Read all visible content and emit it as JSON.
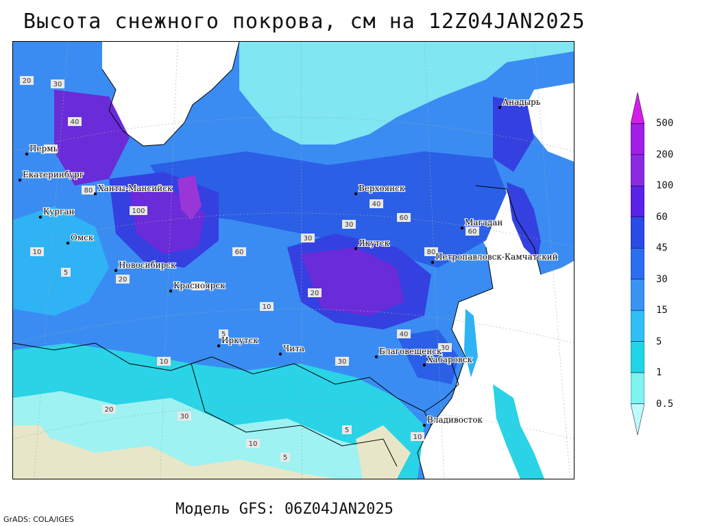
{
  "map": {
    "title": "Высота снежного покрова, см на 12Z04JAN2025",
    "subtitle": "Модель GFS: 06Z04JAN2025",
    "credit": "GrADS: COLA/IGES",
    "legend": {
      "labels": [
        "500",
        "200",
        "100",
        "60",
        "45",
        "30",
        "15",
        "5",
        "1",
        "0.5"
      ],
      "colors": [
        "#d21ee6",
        "#a01ee6",
        "#8a2be2",
        "#5a22e8",
        "#2a4be8",
        "#2b6ef2",
        "#3a92f5",
        "#2fbff7",
        "#1ed6e8",
        "#7ff2f2",
        "#bff8ff"
      ]
    },
    "palette": {
      "sea": "#ffffff",
      "bare_ground": "#e8e6c8",
      "very_low": "#9ef2f2",
      "low": "#2ad3e6",
      "mid_low": "#2fb3f5",
      "mid": "#3a8cf2",
      "mid_high": "#2b5fe6",
      "high": "#3540e0",
      "very_high": "#6a2bd8",
      "extreme": "#9a35d8"
    },
    "cities": [
      {
        "name": "Анадырь"
      },
      {
        "name": "Верхоянск"
      },
      {
        "name": "Магадан"
      },
      {
        "name": "Петропавловск-Камчатский"
      },
      {
        "name": "Якутск"
      },
      {
        "name": "Ханты-Мансийск"
      },
      {
        "name": "Екатеринбург"
      },
      {
        "name": "Пермь"
      },
      {
        "name": "Курган"
      },
      {
        "name": "Омск"
      },
      {
        "name": "Новосибирск"
      },
      {
        "name": "Красноярск"
      },
      {
        "name": "Иркутск"
      },
      {
        "name": "Чита"
      },
      {
        "name": "Благовещенск"
      },
      {
        "name": "Хабаровск"
      },
      {
        "name": "Владивосток"
      }
    ],
    "value_tags": [
      "20",
      "30",
      "40",
      "60",
      "80",
      "100",
      "10",
      "5",
      "20",
      "40",
      "60",
      "30",
      "30",
      "40",
      "60",
      "80",
      "60",
      "40",
      "30",
      "20",
      "10",
      "5",
      "10",
      "20",
      "30",
      "10",
      "5",
      "5",
      "10",
      "30"
    ]
  }
}
